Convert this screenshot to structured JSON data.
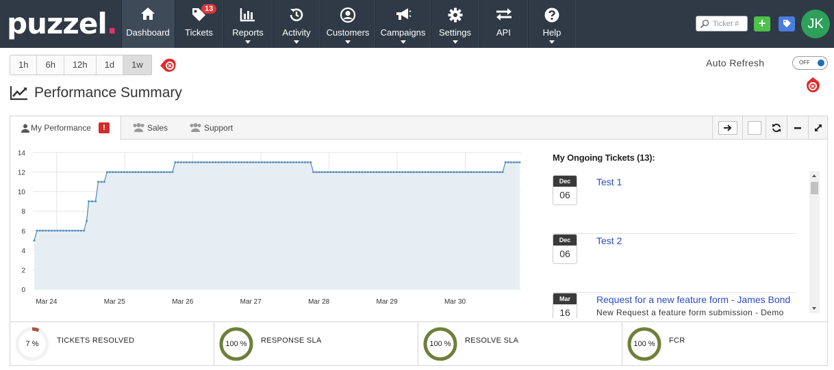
{
  "brand": {
    "logo_text": "puzzel",
    "logo_dot": "."
  },
  "nav": {
    "items": [
      {
        "label": "Dashboard",
        "icon": "home-icon",
        "active": true,
        "caret": false
      },
      {
        "label": "Tickets",
        "icon": "tags-icon",
        "badge": "13",
        "caret": false
      },
      {
        "label": "Reports",
        "icon": "bar-chart-icon",
        "caret": true
      },
      {
        "label": "Activity",
        "icon": "history-icon",
        "caret": true
      },
      {
        "label": "Customers",
        "icon": "user-circle-icon",
        "caret": true
      },
      {
        "label": "Campaigns",
        "icon": "bullhorn-icon",
        "caret": true
      },
      {
        "label": "Settings",
        "icon": "gear-icon",
        "caret": true
      },
      {
        "label": "API",
        "icon": "exchange-icon",
        "caret": false
      },
      {
        "label": "Help",
        "icon": "question-circle-icon",
        "caret": true
      }
    ],
    "search_placeholder": "Ticket #",
    "avatar_initials": "JK"
  },
  "range": {
    "options": [
      "1h",
      "6h",
      "12h",
      "1d",
      "1w"
    ],
    "selected": "1w"
  },
  "auto_refresh": {
    "label": "Auto Refresh",
    "state": "OFF"
  },
  "page_title": "Performance Summary",
  "tabs": [
    {
      "label": "My Performance",
      "icon": "user-icon",
      "alert": "!"
    },
    {
      "label": "Sales",
      "icon": "users-icon"
    },
    {
      "label": "Support",
      "icon": "users-icon"
    }
  ],
  "chart_data": {
    "type": "area",
    "x_ticks": [
      "Mar 24",
      "Mar 25",
      "Mar 26",
      "Mar 27",
      "Mar 28",
      "Mar 29",
      "Mar 30"
    ],
    "y_ticks": [
      0,
      2,
      4,
      6,
      8,
      10,
      12,
      14
    ],
    "ylim": [
      0,
      14
    ],
    "x_range_days": [
      23.7,
      30.8
    ],
    "series": [
      {
        "points": [
          [
            23.67,
            5
          ],
          [
            23.71,
            6
          ],
          [
            24.4,
            6
          ],
          [
            24.44,
            7
          ],
          [
            24.47,
            9
          ],
          [
            24.57,
            9
          ],
          [
            24.61,
            11
          ],
          [
            24.7,
            11
          ],
          [
            24.74,
            12
          ],
          [
            25.7,
            12
          ],
          [
            25.74,
            13
          ],
          [
            27.73,
            13
          ],
          [
            27.77,
            12
          ],
          [
            30.55,
            12
          ],
          [
            30.59,
            13
          ],
          [
            30.8,
            13
          ]
        ],
        "color": "#5b8fb9",
        "fill": "#e6eef4"
      }
    ]
  },
  "tickets_panel": {
    "title": "My Ongoing Tickets (13):",
    "tickets": [
      {
        "month": "Dec",
        "day": "06",
        "title": "Test 1",
        "desc": ""
      },
      {
        "month": "Dec",
        "day": "06",
        "title": "Test 2",
        "desc": ""
      },
      {
        "month": "Mar",
        "day": "16",
        "title": "Request for a new feature form - James Bond",
        "desc": "New Request a feature form submission - Demo"
      }
    ]
  },
  "stats": [
    {
      "value": "7 %",
      "label": "TICKETS RESOLVED",
      "percent": 7,
      "color": "#b05040"
    },
    {
      "value": "100 %",
      "label": "RESPONSE SLA",
      "percent": 100,
      "color": "#6e7f3a"
    },
    {
      "value": "100 %",
      "label": "RESOLVE SLA",
      "percent": 100,
      "color": "#6e7f3a"
    },
    {
      "value": "100 %",
      "label": "FCR",
      "percent": 100,
      "color": "#6e7f3a"
    }
  ],
  "colors": {
    "navbar": "#2f3a46",
    "accent": "#e8316b",
    "link": "#2a4cc4",
    "alert": "#d02d2d"
  }
}
